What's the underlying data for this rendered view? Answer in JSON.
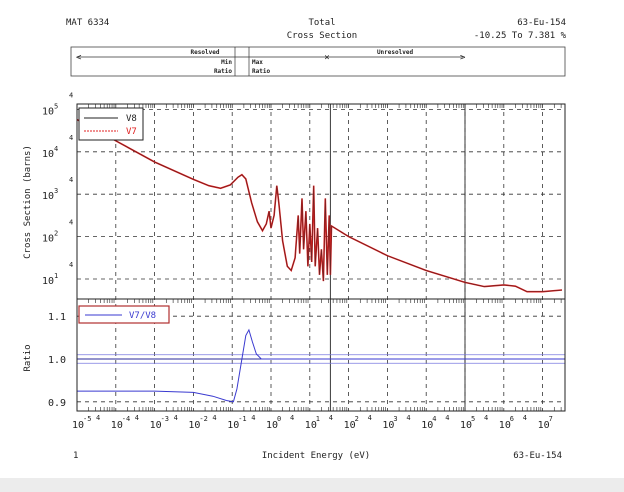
{
  "header": {
    "mat": "MAT 6334",
    "title_line1": "Total",
    "title_line2": "Cross Section",
    "material": "63-Eu-154",
    "ratio_range": "-10.25 To 7.381 %",
    "resolved_label": "Resolved",
    "unresolved_label": "Unresolved",
    "min_ratio_label": [
      "Min",
      "Ratio"
    ],
    "max_ratio_label": [
      "Max",
      "Ratio"
    ]
  },
  "footer": {
    "page": "1",
    "xlabel": "Incident Energy (eV)",
    "material": "63-Eu-154"
  },
  "colors": {
    "v8": "#222222",
    "v7": "#e02020",
    "ratio": "#3a3ad0",
    "legend_border": "#b03030"
  },
  "chart_data": [
    {
      "type": "line",
      "title": "Total Cross Section",
      "xlabel": "Incident Energy (eV)",
      "ylabel": "Cross Section (barns)",
      "xscale": "log",
      "yscale": "log",
      "xlim_log10": [
        -5,
        7.55
      ],
      "ylim_log10": [
        0.47,
        5.13
      ],
      "x_ticks": [
        "-5",
        "-4",
        "-3",
        "-2",
        "-1",
        "0",
        "1",
        "2",
        "3",
        "4",
        "5",
        "6",
        "7"
      ],
      "y_ticks": [
        "5",
        "4",
        "3",
        "2",
        "1"
      ],
      "grid": true,
      "legend": {
        "placement": "top-left",
        "entries": [
          "V8",
          "V7"
        ]
      },
      "series_log10_points": [
        [
          -5,
          4.76
        ],
        [
          -4,
          4.26
        ],
        [
          -3,
          3.76
        ],
        [
          -2,
          3.35
        ],
        [
          -1.6,
          3.2
        ],
        [
          -1.3,
          3.14
        ],
        [
          -1.05,
          3.22
        ],
        [
          -0.85,
          3.4
        ],
        [
          -0.75,
          3.46
        ],
        [
          -0.65,
          3.36
        ],
        [
          -0.5,
          2.8
        ],
        [
          -0.35,
          2.35
        ],
        [
          -0.22,
          2.14
        ],
        [
          -0.12,
          2.3
        ],
        [
          -0.05,
          2.6
        ],
        [
          0.0,
          2.2
        ],
        [
          0.08,
          2.5
        ],
        [
          0.15,
          3.2
        ],
        [
          0.2,
          2.8
        ],
        [
          0.3,
          1.9
        ],
        [
          0.42,
          1.3
        ],
        [
          0.52,
          1.2
        ],
        [
          0.62,
          1.5
        ],
        [
          0.7,
          2.5
        ],
        [
          0.74,
          1.6
        ],
        [
          0.8,
          2.9
        ],
        [
          0.84,
          1.7
        ],
        [
          0.9,
          2.6
        ],
        [
          0.95,
          1.3
        ],
        [
          1.0,
          2.3
        ],
        [
          1.05,
          1.4
        ],
        [
          1.1,
          3.2
        ],
        [
          1.14,
          1.3
        ],
        [
          1.2,
          2.2
        ],
        [
          1.25,
          1.1
        ],
        [
          1.3,
          1.7
        ],
        [
          1.35,
          0.95
        ],
        [
          1.4,
          2.9
        ],
        [
          1.45,
          1.1
        ],
        [
          1.5,
          2.5
        ],
        [
          1.53,
          1.1
        ],
        [
          1.56,
          2.25
        ],
        [
          2,
          2.0
        ],
        [
          3,
          1.55
        ],
        [
          4,
          1.2
        ],
        [
          5,
          0.92
        ],
        [
          5.5,
          0.82
        ],
        [
          6,
          0.86
        ],
        [
          6.3,
          0.83
        ],
        [
          6.6,
          0.7
        ],
        [
          7,
          0.7
        ],
        [
          7.5,
          0.74
        ]
      ]
    },
    {
      "type": "line",
      "ylabel": "Ratio",
      "xscale": "log",
      "ylim": [
        0.879,
        1.143
      ],
      "y_ticks": [
        "1.1",
        "1.0",
        "0.9"
      ],
      "legend": {
        "placement": "top-left",
        "entries": [
          "V7/V8"
        ]
      },
      "reference_lines": [
        0.99,
        1.0,
        1.01
      ],
      "series_log10x_points": [
        [
          -5,
          0.925
        ],
        [
          -3,
          0.925
        ],
        [
          -2,
          0.922
        ],
        [
          -1.5,
          0.913
        ],
        [
          -1.15,
          0.903
        ],
        [
          -0.97,
          0.9
        ],
        [
          -0.88,
          0.93
        ],
        [
          -0.75,
          1.0
        ],
        [
          -0.65,
          1.055
        ],
        [
          -0.57,
          1.068
        ],
        [
          -0.48,
          1.04
        ],
        [
          -0.38,
          1.012
        ],
        [
          -0.25,
          1.0
        ],
        [
          7.55,
          1.0
        ]
      ]
    }
  ]
}
